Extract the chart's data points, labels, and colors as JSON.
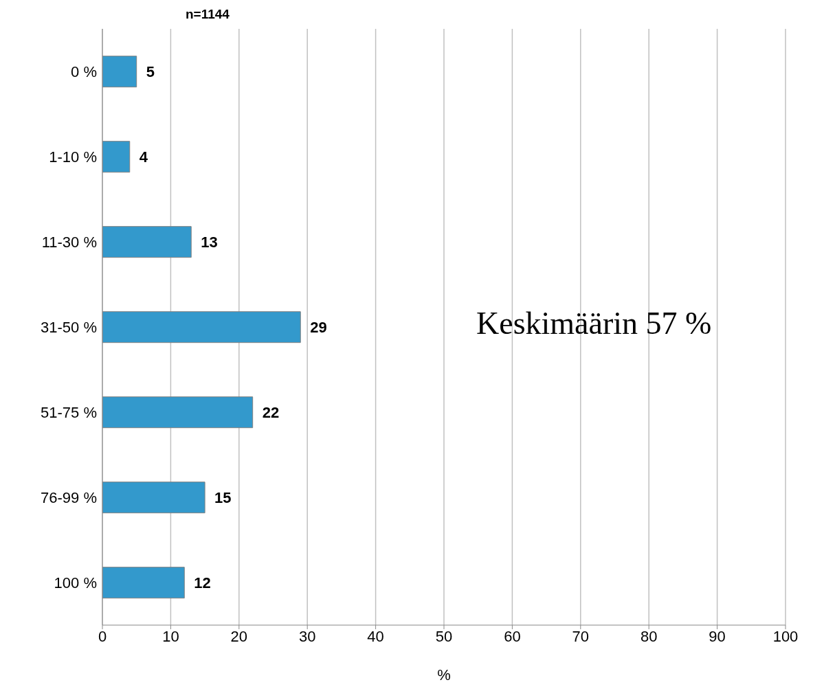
{
  "chart_data": {
    "type": "bar",
    "orientation": "horizontal",
    "title": "n=1144",
    "xlabel": "%",
    "categories": [
      "0 %",
      "1-10 %",
      "11-30 %",
      "31-50 %",
      "51-75 %",
      "76-99 %",
      "100 %"
    ],
    "values": [
      5,
      4,
      13,
      29,
      22,
      15,
      12
    ],
    "color": "#3399cc",
    "data_labels": true,
    "xlim": [
      0,
      100
    ],
    "xticks": [
      0,
      10,
      20,
      30,
      40,
      50,
      60,
      70,
      80,
      90,
      100
    ],
    "grid": "x",
    "annotations": [
      "Keskimäärin 57 %"
    ]
  }
}
